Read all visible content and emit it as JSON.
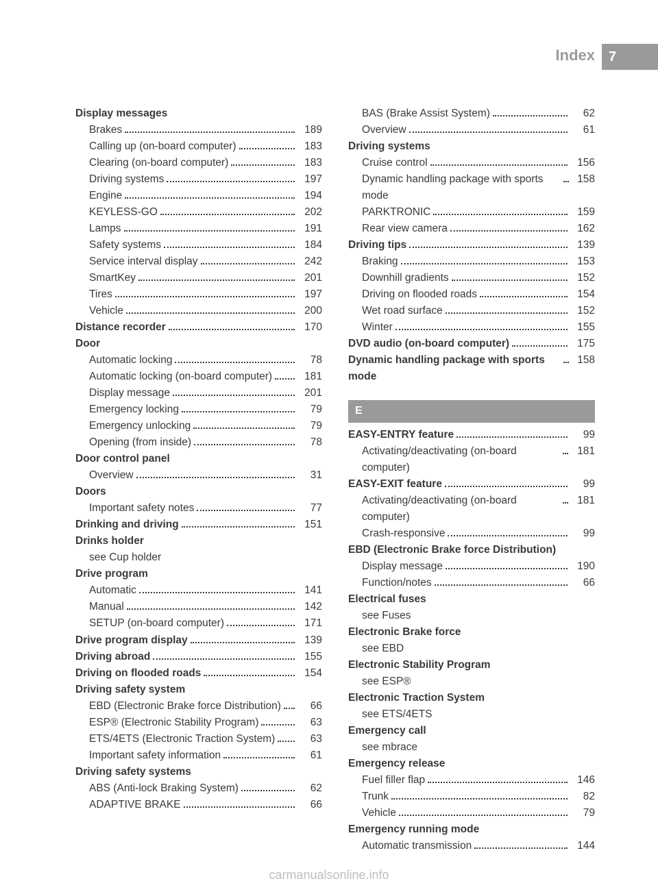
{
  "header": {
    "title": "Index",
    "page_number": "7"
  },
  "footer": "carmanualsonline.info",
  "section_letter": "E",
  "columns": [
    [
      {
        "type": "head",
        "text": "Display messages"
      },
      {
        "type": "sub",
        "text": "Brakes",
        "page": "189"
      },
      {
        "type": "sub",
        "text": "Calling up (on-board computer)",
        "page": "183"
      },
      {
        "type": "sub",
        "text": "Clearing (on-board computer)",
        "page": "183"
      },
      {
        "type": "sub",
        "text": "Driving systems",
        "page": "197"
      },
      {
        "type": "sub",
        "text": "Engine",
        "page": "194"
      },
      {
        "type": "sub",
        "text": "KEYLESS-GO",
        "page": "202"
      },
      {
        "type": "sub",
        "text": "Lamps",
        "page": "191"
      },
      {
        "type": "sub",
        "text": "Safety systems",
        "page": "184"
      },
      {
        "type": "sub",
        "text": "Service interval display",
        "page": "242"
      },
      {
        "type": "sub",
        "text": "SmartKey",
        "page": "201"
      },
      {
        "type": "sub",
        "text": "Tires",
        "page": "197"
      },
      {
        "type": "sub",
        "text": "Vehicle",
        "page": "200"
      },
      {
        "type": "bold",
        "text": "Distance recorder",
        "page": "170"
      },
      {
        "type": "head",
        "text": "Door"
      },
      {
        "type": "sub",
        "text": "Automatic locking",
        "page": "78"
      },
      {
        "type": "sub",
        "text": "Automatic locking (on-board computer)",
        "page": "181"
      },
      {
        "type": "sub",
        "text": "Display message",
        "page": "201"
      },
      {
        "type": "sub",
        "text": "Emergency locking",
        "page": "79"
      },
      {
        "type": "sub",
        "text": "Emergency unlocking",
        "page": "79"
      },
      {
        "type": "sub",
        "text": "Opening (from inside)",
        "page": "78"
      },
      {
        "type": "head",
        "text": "Door control panel"
      },
      {
        "type": "sub",
        "text": "Overview",
        "page": "31"
      },
      {
        "type": "head",
        "text": "Doors"
      },
      {
        "type": "sub",
        "text": "Important safety notes",
        "page": "77"
      },
      {
        "type": "bold",
        "text": "Drinking and driving",
        "page": "151"
      },
      {
        "type": "head",
        "text": "Drinks holder"
      },
      {
        "type": "see",
        "text": "see Cup holder"
      },
      {
        "type": "head",
        "text": "Drive program"
      },
      {
        "type": "sub",
        "text": "Automatic",
        "page": "141"
      },
      {
        "type": "sub",
        "text": "Manual",
        "page": "142"
      },
      {
        "type": "sub",
        "text": "SETUP (on-board computer)",
        "page": "171"
      },
      {
        "type": "bold",
        "text": "Drive program display",
        "page": "139"
      },
      {
        "type": "bold",
        "text": "Driving abroad",
        "page": "155"
      },
      {
        "type": "bold",
        "text": "Driving on flooded roads",
        "page": "154"
      },
      {
        "type": "head",
        "text": "Driving safety system"
      },
      {
        "type": "sub",
        "text": "EBD (Electronic Brake force Distribution)",
        "page": "66"
      },
      {
        "type": "sub",
        "text": "ESP® (Electronic Stability Program)",
        "page": "63"
      },
      {
        "type": "sub",
        "text": "ETS/4ETS (Electronic Traction System)",
        "page": "63"
      },
      {
        "type": "sub",
        "text": "Important safety information",
        "page": "61"
      },
      {
        "type": "head",
        "text": "Driving safety systems"
      },
      {
        "type": "sub",
        "text": "ABS (Anti-lock Braking System)",
        "page": "62"
      },
      {
        "type": "sub",
        "text": "ADAPTIVE BRAKE",
        "page": "66"
      }
    ],
    [
      {
        "type": "sub",
        "text": "BAS (Brake Assist System)",
        "page": "62"
      },
      {
        "type": "sub",
        "text": "Overview",
        "page": "61"
      },
      {
        "type": "head",
        "text": "Driving systems"
      },
      {
        "type": "sub",
        "text": "Cruise control",
        "page": "156"
      },
      {
        "type": "sub",
        "text": "Dynamic handling package with sports mode",
        "page": "158"
      },
      {
        "type": "sub",
        "text": "PARKTRONIC",
        "page": "159"
      },
      {
        "type": "sub",
        "text": "Rear view camera",
        "page": "162"
      },
      {
        "type": "bold",
        "text": "Driving tips",
        "page": "139"
      },
      {
        "type": "sub",
        "text": "Braking",
        "page": "153"
      },
      {
        "type": "sub",
        "text": "Downhill gradients",
        "page": "152"
      },
      {
        "type": "sub",
        "text": "Driving on flooded roads",
        "page": "154"
      },
      {
        "type": "sub",
        "text": "Wet road surface",
        "page": "152"
      },
      {
        "type": "sub",
        "text": "Winter",
        "page": "155"
      },
      {
        "type": "bold",
        "text": "DVD audio (on-board computer)",
        "page": "175"
      },
      {
        "type": "bold",
        "text": "Dynamic handling package with sports mode",
        "page": "158"
      },
      {
        "type": "section",
        "text": "E"
      },
      {
        "type": "bold",
        "text": "EASY-ENTRY feature",
        "page": "99"
      },
      {
        "type": "sub",
        "text": "Activating/deactivating (on-board computer)",
        "page": "181"
      },
      {
        "type": "bold",
        "text": "EASY-EXIT feature",
        "page": "99"
      },
      {
        "type": "sub",
        "text": "Activating/deactivating (on-board computer)",
        "page": "181"
      },
      {
        "type": "sub",
        "text": "Crash-responsive",
        "page": "99"
      },
      {
        "type": "head",
        "text": "EBD (Electronic Brake force Distribution)"
      },
      {
        "type": "sub",
        "text": "Display message",
        "page": "190"
      },
      {
        "type": "sub",
        "text": "Function/notes",
        "page": "66"
      },
      {
        "type": "head",
        "text": "Electrical fuses"
      },
      {
        "type": "see",
        "text": "see Fuses"
      },
      {
        "type": "head",
        "text": "Electronic Brake force"
      },
      {
        "type": "see",
        "text": "see EBD"
      },
      {
        "type": "head",
        "text": "Electronic Stability Program"
      },
      {
        "type": "see",
        "text": "see ESP®"
      },
      {
        "type": "head",
        "text": "Electronic Traction System"
      },
      {
        "type": "see",
        "text": "see ETS/4ETS"
      },
      {
        "type": "head",
        "text": "Emergency call"
      },
      {
        "type": "see",
        "text": "see mbrace"
      },
      {
        "type": "head",
        "text": "Emergency release"
      },
      {
        "type": "sub",
        "text": "Fuel filler flap",
        "page": "146"
      },
      {
        "type": "sub",
        "text": "Trunk",
        "page": "82"
      },
      {
        "type": "sub",
        "text": "Vehicle",
        "page": "79"
      },
      {
        "type": "head",
        "text": "Emergency running mode"
      },
      {
        "type": "sub",
        "text": "Automatic transmission",
        "page": "144"
      }
    ]
  ]
}
